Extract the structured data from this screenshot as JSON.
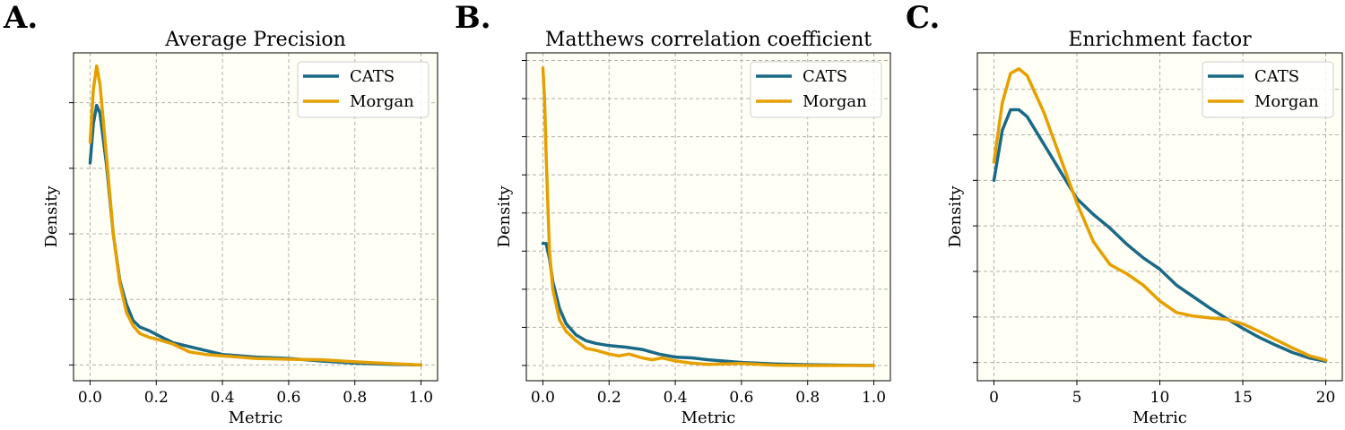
{
  "colors": {
    "cats": "#1a6987",
    "morgan": "#e5a000",
    "plot_background": "#fffff5",
    "grid": "#b0b0b0"
  },
  "chart_data": [
    {
      "type": "line",
      "panel_letter": "A.",
      "title": "Average Precision",
      "xlabel": "Metric",
      "ylabel": "Density",
      "xlim": [
        -0.05,
        1.05
      ],
      "ylim": [
        -0.06,
        1.19
      ],
      "xticks": [
        0.0,
        0.2,
        0.4,
        0.6,
        0.8,
        1.0
      ],
      "xtick_labels": [
        "0.0",
        "0.2",
        "0.4",
        "0.6",
        "0.8",
        "1.0"
      ],
      "yticks": [
        0.0,
        0.25,
        0.5,
        0.75,
        1.0
      ],
      "ytick_labels_shown": false,
      "grid": true,
      "legend": "top-right",
      "series": [
        {
          "name": "CATS",
          "color": "#1a6987",
          "x": [
            0.0,
            0.01,
            0.02,
            0.03,
            0.05,
            0.07,
            0.09,
            0.11,
            0.13,
            0.15,
            0.18,
            0.21,
            0.25,
            0.3,
            0.35,
            0.4,
            0.5,
            0.6,
            0.7,
            0.8,
            0.9,
            1.0
          ],
          "y": [
            0.77,
            0.92,
            0.99,
            0.96,
            0.76,
            0.5,
            0.32,
            0.23,
            0.17,
            0.145,
            0.13,
            0.11,
            0.085,
            0.07,
            0.055,
            0.04,
            0.03,
            0.025,
            0.015,
            0.007,
            0.003,
            0.0
          ]
        },
        {
          "name": "Morgan",
          "color": "#e5a000",
          "x": [
            0.0,
            0.01,
            0.02,
            0.03,
            0.05,
            0.07,
            0.09,
            0.11,
            0.13,
            0.15,
            0.18,
            0.21,
            0.25,
            0.3,
            0.35,
            0.4,
            0.5,
            0.6,
            0.7,
            0.8,
            0.9,
            1.0
          ],
          "y": [
            0.85,
            1.05,
            1.14,
            1.07,
            0.79,
            0.5,
            0.31,
            0.2,
            0.15,
            0.12,
            0.105,
            0.095,
            0.08,
            0.05,
            0.04,
            0.035,
            0.025,
            0.022,
            0.02,
            0.012,
            0.006,
            0.0
          ]
        }
      ]
    },
    {
      "type": "line",
      "panel_letter": "B.",
      "title": "Matthews correlation coefficient",
      "xlabel": "Metric",
      "ylabel": "Density",
      "xlim": [
        -0.05,
        1.05
      ],
      "ylim": [
        -0.04,
        0.82
      ],
      "xticks": [
        0.0,
        0.2,
        0.4,
        0.6,
        0.8,
        1.0
      ],
      "xtick_labels": [
        "0.0",
        "0.2",
        "0.4",
        "0.6",
        "0.8",
        "1.0"
      ],
      "yticks": [
        0.0,
        0.1,
        0.2,
        0.3,
        0.4,
        0.5,
        0.6,
        0.7,
        0.8
      ],
      "ytick_labels_shown": false,
      "grid": true,
      "legend": "top-right",
      "series": [
        {
          "name": "CATS",
          "color": "#1a6987",
          "x": [
            0.0,
            0.01,
            0.02,
            0.03,
            0.05,
            0.07,
            0.1,
            0.13,
            0.16,
            0.2,
            0.25,
            0.3,
            0.35,
            0.4,
            0.45,
            0.5,
            0.6,
            0.7,
            0.8,
            0.9,
            1.0
          ],
          "y": [
            0.32,
            0.32,
            0.28,
            0.22,
            0.15,
            0.11,
            0.08,
            0.065,
            0.058,
            0.052,
            0.048,
            0.042,
            0.03,
            0.022,
            0.02,
            0.015,
            0.008,
            0.004,
            0.002,
            0.001,
            0.0
          ]
        },
        {
          "name": "Morgan",
          "color": "#e5a000",
          "x": [
            0.0,
            0.005,
            0.01,
            0.02,
            0.03,
            0.05,
            0.07,
            0.1,
            0.13,
            0.16,
            0.2,
            0.23,
            0.26,
            0.3,
            0.33,
            0.36,
            0.4,
            0.45,
            0.5,
            0.6,
            0.7,
            0.8,
            0.9,
            1.0
          ],
          "y": [
            0.78,
            0.7,
            0.55,
            0.3,
            0.2,
            0.12,
            0.09,
            0.065,
            0.045,
            0.04,
            0.03,
            0.025,
            0.03,
            0.02,
            0.015,
            0.02,
            0.012,
            0.006,
            0.003,
            0.005,
            0.001,
            0.0,
            0.0,
            0.0
          ]
        }
      ]
    },
    {
      "type": "line",
      "panel_letter": "C.",
      "title": "Enrichment factor",
      "xlabel": "Metric",
      "ylabel": "Density",
      "xlim": [
        -1.0,
        21.0
      ],
      "ylim": [
        -0.004,
        0.068
      ],
      "xticks": [
        0,
        5,
        10,
        15,
        20
      ],
      "xtick_labels": [
        "0",
        "5",
        "10",
        "15",
        "20"
      ],
      "yticks": [
        0.0,
        0.01,
        0.02,
        0.03,
        0.04,
        0.05,
        0.06
      ],
      "ytick_labels_shown": false,
      "grid": true,
      "legend": "top-right",
      "series": [
        {
          "name": "CATS",
          "color": "#1a6987",
          "x": [
            0,
            0.5,
            1,
            1.5,
            2,
            3,
            4,
            5,
            6,
            7,
            8,
            9,
            10,
            11,
            12,
            13,
            14,
            15,
            16,
            17,
            18,
            19,
            20
          ],
          "y": [
            0.04,
            0.051,
            0.0555,
            0.0555,
            0.054,
            0.048,
            0.042,
            0.036,
            0.0325,
            0.0295,
            0.026,
            0.023,
            0.0205,
            0.017,
            0.0145,
            0.012,
            0.0097,
            0.0075,
            0.0055,
            0.0038,
            0.0022,
            0.001,
            0.0003
          ]
        },
        {
          "name": "Morgan",
          "color": "#e5a000",
          "x": [
            0,
            0.5,
            1,
            1.5,
            2,
            3,
            4,
            5,
            6,
            7,
            8,
            9,
            10,
            11,
            12,
            13,
            14,
            15,
            16,
            17,
            18,
            19,
            20
          ],
          "y": [
            0.044,
            0.057,
            0.0635,
            0.0645,
            0.063,
            0.055,
            0.045,
            0.035,
            0.0265,
            0.0215,
            0.0195,
            0.017,
            0.0135,
            0.011,
            0.0102,
            0.0098,
            0.0095,
            0.0085,
            0.0068,
            0.005,
            0.0032,
            0.0015,
            0.0005
          ]
        }
      ]
    }
  ]
}
